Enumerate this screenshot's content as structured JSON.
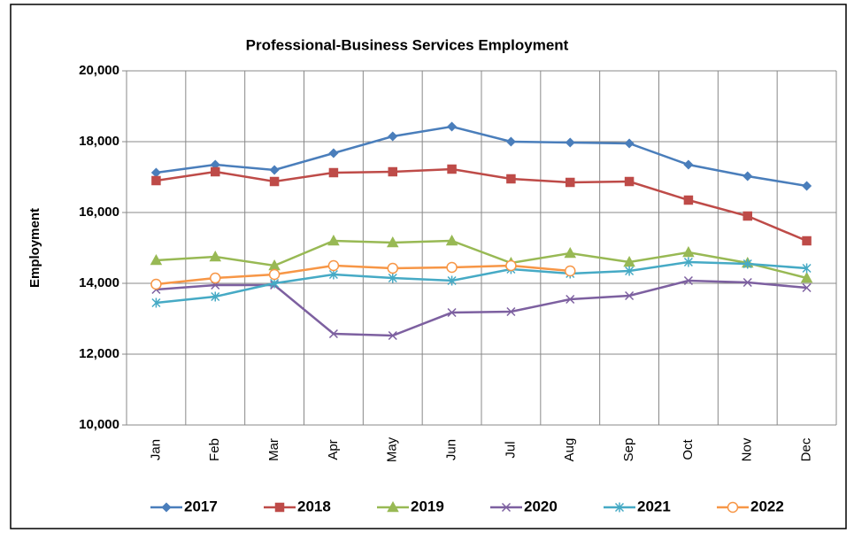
{
  "chart_data": {
    "type": "line",
    "title": "Professional-Business Services Employment",
    "y_label": "Employment",
    "categories": [
      "Jan",
      "Feb",
      "Mar",
      "Apr",
      "May",
      "Jun",
      "Jul",
      "Aug",
      "Sep",
      "Oct",
      "Nov",
      "Dec"
    ],
    "ylim": [
      10000,
      20000
    ],
    "yticks": [
      {
        "value": 10000,
        "label": "10,000"
      },
      {
        "value": 12000,
        "label": "12,000"
      },
      {
        "value": 14000,
        "label": "14,000"
      },
      {
        "value": 16000,
        "label": "16,000"
      },
      {
        "value": 18000,
        "label": "18,000"
      },
      {
        "value": 20000,
        "label": "20,000"
      }
    ],
    "grid": true,
    "legend": "bottom",
    "series": [
      {
        "name": "2017",
        "color": "#4a7ebb",
        "marker": "diamond",
        "values": [
          17125,
          17350,
          17200,
          17675,
          18150,
          18425,
          18000,
          17975,
          17950,
          17350,
          17025,
          16750
        ]
      },
      {
        "name": "2018",
        "color": "#be4b48",
        "marker": "square",
        "values": [
          16900,
          17150,
          16875,
          17125,
          17150,
          17225,
          16950,
          16850,
          16875,
          16350,
          15900,
          15200
        ]
      },
      {
        "name": "2019",
        "color": "#98b954",
        "marker": "triangle",
        "values": [
          14650,
          14750,
          14500,
          15200,
          15150,
          15200,
          14575,
          14850,
          14600,
          14875,
          14575,
          14150
        ]
      },
      {
        "name": "2020",
        "color": "#7d60a0",
        "marker": "x",
        "values": [
          13825,
          13950,
          13950,
          12575,
          12525,
          13175,
          13200,
          13550,
          13650,
          14075,
          14025,
          13875
        ]
      },
      {
        "name": "2021",
        "color": "#46aac5",
        "marker": "star",
        "values": [
          13450,
          13625,
          14000,
          14250,
          14150,
          14075,
          14400,
          14275,
          14350,
          14600,
          14550,
          14425
        ]
      },
      {
        "name": "2022",
        "color": "#f79646",
        "marker": "circle",
        "values": [
          13975,
          14150,
          14250,
          14500,
          14425,
          14450,
          14500,
          14350,
          null,
          null,
          null,
          null
        ]
      }
    ]
  }
}
